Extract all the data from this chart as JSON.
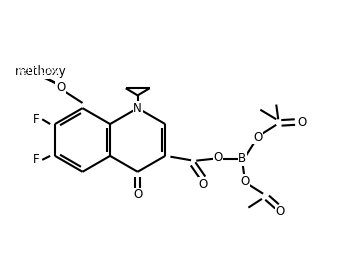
{
  "background_color": "#ffffff",
  "line_width": 1.5,
  "font_size": 8.5,
  "figsize": [
    3.62,
    2.66
  ],
  "dpi": 100,
  "xlim": [
    0,
    9.05
  ],
  "ylim": [
    0,
    6.65
  ]
}
